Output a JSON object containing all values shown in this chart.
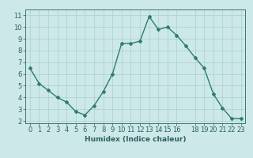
{
  "x": [
    0,
    1,
    2,
    3,
    4,
    5,
    6,
    7,
    8,
    9,
    10,
    11,
    12,
    13,
    14,
    15,
    16,
    17,
    18,
    19,
    20,
    21,
    22,
    23
  ],
  "y": [
    6.5,
    5.2,
    4.6,
    4.0,
    3.6,
    2.8,
    2.5,
    3.3,
    4.5,
    6.0,
    8.6,
    8.6,
    8.8,
    10.9,
    9.8,
    10.0,
    9.3,
    8.4,
    7.4,
    6.5,
    4.3,
    3.1,
    2.2,
    2.2
  ],
  "line_color": "#2e7d6e",
  "marker": "D",
  "marker_size": 2.0,
  "linewidth": 1.0,
  "bg_color": "#cce8e8",
  "grid_color": "#aacfcf",
  "xlabel": "Humidex (Indice chaleur)",
  "xlim": [
    -0.5,
    23.5
  ],
  "ylim": [
    1.8,
    11.5
  ],
  "xticks": [
    0,
    1,
    2,
    3,
    4,
    5,
    6,
    7,
    8,
    9,
    10,
    11,
    12,
    13,
    14,
    15,
    16,
    18,
    19,
    20,
    21,
    22,
    23
  ],
  "xtick_labels": [
    "0",
    "1",
    "2",
    "3",
    "4",
    "5",
    "6",
    "7",
    "8",
    "9",
    "10",
    "11",
    "12",
    "13",
    "14",
    "15",
    "16",
    "18",
    "19",
    "20",
    "21",
    "22",
    "23"
  ],
  "yticks": [
    2,
    3,
    4,
    5,
    6,
    7,
    8,
    9,
    10,
    11
  ],
  "tick_color": "#2e6060",
  "label_fontsize": 6.5,
  "tick_fontsize": 6.0
}
